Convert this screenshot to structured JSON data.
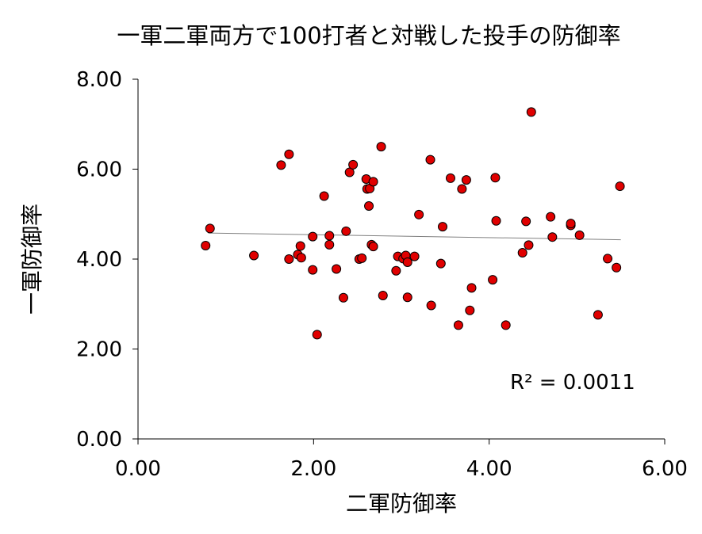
{
  "chart_data": {
    "type": "scatter",
    "title": "一軍二軍両方で100打者と対戦した投手の防御率",
    "xlabel": "二軍防御率",
    "ylabel": "一軍防御率",
    "xlim": [
      0,
      6
    ],
    "ylim": [
      0,
      8
    ],
    "x_ticks": [
      "0.00",
      "2.00",
      "4.00",
      "6.00"
    ],
    "y_ticks": [
      "0.00",
      "2.00",
      "4.00",
      "6.00",
      "8.00"
    ],
    "grid": false,
    "marker_color": "#e00000",
    "marker_edge_color": "#000000",
    "trendline": {
      "x": [
        0.8,
        5.5
      ],
      "y": [
        4.58,
        4.43
      ],
      "color": "#808080"
    },
    "annotation": "R² = 0.0011",
    "points": [
      {
        "x": 0.77,
        "y": 4.3
      },
      {
        "x": 0.82,
        "y": 4.68
      },
      {
        "x": 1.32,
        "y": 4.08
      },
      {
        "x": 1.63,
        "y": 6.09
      },
      {
        "x": 1.72,
        "y": 6.33
      },
      {
        "x": 1.72,
        "y": 4.0
      },
      {
        "x": 1.82,
        "y": 4.1
      },
      {
        "x": 1.85,
        "y": 4.29
      },
      {
        "x": 1.86,
        "y": 4.03
      },
      {
        "x": 1.99,
        "y": 4.5
      },
      {
        "x": 1.99,
        "y": 3.76
      },
      {
        "x": 2.04,
        "y": 2.32
      },
      {
        "x": 2.12,
        "y": 5.4
      },
      {
        "x": 2.18,
        "y": 4.52
      },
      {
        "x": 2.18,
        "y": 4.32
      },
      {
        "x": 2.26,
        "y": 3.78
      },
      {
        "x": 2.34,
        "y": 3.14
      },
      {
        "x": 2.37,
        "y": 4.62
      },
      {
        "x": 2.41,
        "y": 5.93
      },
      {
        "x": 2.45,
        "y": 6.1
      },
      {
        "x": 2.52,
        "y": 4.0
      },
      {
        "x": 2.55,
        "y": 4.02
      },
      {
        "x": 2.6,
        "y": 5.78
      },
      {
        "x": 2.61,
        "y": 5.56
      },
      {
        "x": 2.63,
        "y": 5.18
      },
      {
        "x": 2.64,
        "y": 5.57
      },
      {
        "x": 2.66,
        "y": 4.32
      },
      {
        "x": 2.68,
        "y": 4.28
      },
      {
        "x": 2.68,
        "y": 5.72
      },
      {
        "x": 2.77,
        "y": 6.5
      },
      {
        "x": 2.79,
        "y": 3.19
      },
      {
        "x": 2.94,
        "y": 3.74
      },
      {
        "x": 2.96,
        "y": 4.06
      },
      {
        "x": 3.02,
        "y": 4.01
      },
      {
        "x": 3.05,
        "y": 4.08
      },
      {
        "x": 3.07,
        "y": 3.93
      },
      {
        "x": 3.07,
        "y": 3.15
      },
      {
        "x": 3.15,
        "y": 4.06
      },
      {
        "x": 3.2,
        "y": 4.99
      },
      {
        "x": 3.33,
        "y": 6.21
      },
      {
        "x": 3.34,
        "y": 2.97
      },
      {
        "x": 3.45,
        "y": 3.9
      },
      {
        "x": 3.47,
        "y": 4.72
      },
      {
        "x": 3.56,
        "y": 5.8
      },
      {
        "x": 3.65,
        "y": 2.53
      },
      {
        "x": 3.69,
        "y": 5.56
      },
      {
        "x": 3.74,
        "y": 5.76
      },
      {
        "x": 3.78,
        "y": 2.86
      },
      {
        "x": 3.8,
        "y": 3.36
      },
      {
        "x": 4.04,
        "y": 3.54
      },
      {
        "x": 4.07,
        "y": 5.81
      },
      {
        "x": 4.08,
        "y": 4.85
      },
      {
        "x": 4.19,
        "y": 2.53
      },
      {
        "x": 4.38,
        "y": 4.14
      },
      {
        "x": 4.42,
        "y": 4.84
      },
      {
        "x": 4.45,
        "y": 4.31
      },
      {
        "x": 4.48,
        "y": 7.27
      },
      {
        "x": 4.7,
        "y": 4.94
      },
      {
        "x": 4.72,
        "y": 4.49
      },
      {
        "x": 4.93,
        "y": 4.75
      },
      {
        "x": 4.93,
        "y": 4.79
      },
      {
        "x": 5.03,
        "y": 4.53
      },
      {
        "x": 5.24,
        "y": 2.76
      },
      {
        "x": 5.35,
        "y": 4.01
      },
      {
        "x": 5.45,
        "y": 3.81
      },
      {
        "x": 5.49,
        "y": 5.62
      }
    ]
  }
}
